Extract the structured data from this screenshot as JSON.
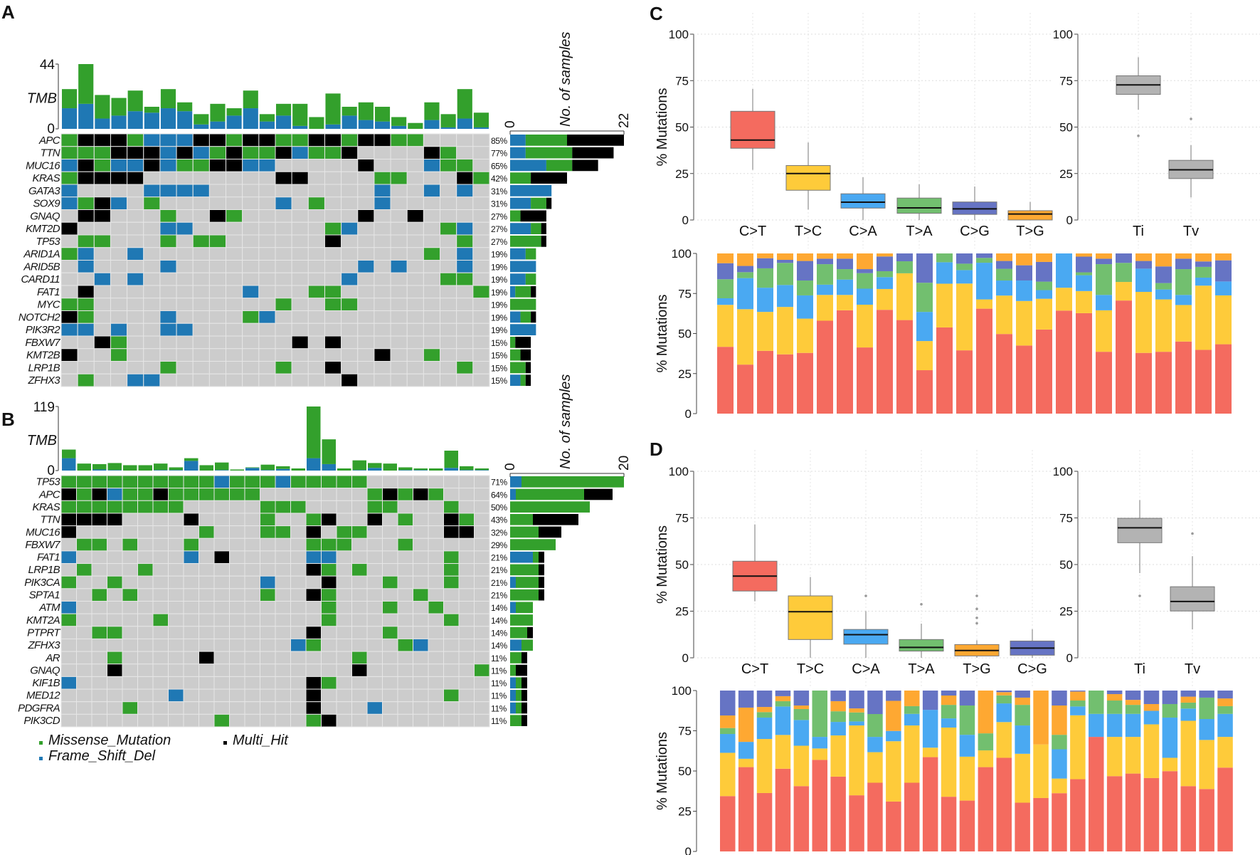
{
  "colors": {
    "Missense_Mutation": "#33a02c",
    "Frame_Shift_Del": "#1f78b4",
    "Multi_Hit": "#000000",
    "none": "#cccccc",
    "C>T": "#f46b5f",
    "T>C": "#fecb3a",
    "C>A": "#4aa9f2",
    "T>A": "#72bf6f",
    "C>G": "#6674c4",
    "T>G": "#fea832",
    "Ti": "#b3b3b3",
    "Tv": "#b3b3b3"
  },
  "cell_codes": {
    "G": "Missense_Mutation",
    "B": "Frame_Shift_Del",
    "K": "Multi_Hit",
    ".": "none"
  },
  "legend": {
    "items": [
      {
        "label": "Missense_Mutation",
        "code": "G"
      },
      {
        "label": "Frame_Shift_Del",
        "code": "B"
      },
      {
        "label": "Multi_Hit",
        "code": "K"
      }
    ]
  },
  "A": {
    "panel_label": "A",
    "tmb_axis": {
      "label": "TMB",
      "max": "44",
      "min": "0",
      "max_value": 44
    },
    "tmb_stack_order": [
      "Frame_Shift_Del",
      "Missense_Mutation"
    ],
    "tmb": [
      [
        14,
        13
      ],
      [
        17,
        27
      ],
      [
        7,
        16
      ],
      [
        9,
        12
      ],
      [
        12,
        14
      ],
      [
        11,
        4
      ],
      [
        14,
        13
      ],
      [
        12,
        6
      ],
      [
        3,
        7
      ],
      [
        5,
        12
      ],
      [
        9,
        5
      ],
      [
        14,
        12
      ],
      [
        5,
        5
      ],
      [
        9,
        8
      ],
      [
        2,
        15
      ],
      [
        0,
        8
      ],
      [
        3,
        21
      ],
      [
        9,
        6
      ],
      [
        6,
        12
      ],
      [
        5,
        10
      ],
      [
        2,
        6
      ],
      [
        0,
        4
      ],
      [
        6,
        12
      ],
      [
        1,
        9
      ],
      [
        7,
        20
      ],
      [
        1,
        10
      ]
    ],
    "count_axis": {
      "label": "No. of samples",
      "min": "0",
      "max": "22",
      "max_value": 22
    },
    "genes": [
      {
        "gene": "APC",
        "pct": "85%",
        "cells": "GKKKGBBBKKGKKGGKKGKKGG...."
      },
      {
        "gene": "TTN",
        "pct": "77%",
        "cells": "GGGKKKBKBGKGGKBGGK....KG.."
      },
      {
        "gene": "MUC16",
        "pct": "65%",
        "cells": "BKGBBKBGGKKBB.....K...BGG."
      },
      {
        "gene": "KRAS",
        "pct": "42%",
        "cells": "GKKKK........KK....GG...KG"
      },
      {
        "gene": "GATA3",
        "pct": "31%",
        "cells": "B....BBBB..........B..B.B."
      },
      {
        "gene": "SOX9",
        "pct": "31%",
        "cells": "BGKB.G.......B.G...B......"
      },
      {
        "gene": "GNAQ",
        "pct": "27%",
        "cells": ".KK...G..KG.......K..K...."
      },
      {
        "gene": "KMT2D",
        "pct": "27%",
        "cells": "K.....BB........GB.....GB."
      },
      {
        "gene": "TP53",
        "pct": "27%",
        "cells": ".GG...G.GG......K.......G."
      },
      {
        "gene": "ARID1A",
        "pct": "19%",
        "cells": "GB..B.................G.B."
      },
      {
        "gene": "ARID5B",
        "pct": "19%",
        "cells": ".B....B...........B.B...B."
      },
      {
        "gene": "CARD11",
        "pct": "19%",
        "cells": "..B.B............B.....GG."
      },
      {
        "gene": "FAT1",
        "pct": "19%",
        "cells": ".K.........B...GG........G"
      },
      {
        "gene": "MYC",
        "pct": "19%",
        "cells": "GG...........G..GG........"
      },
      {
        "gene": "NOTCH2",
        "pct": "19%",
        "cells": "KG....B....GB............."
      },
      {
        "gene": "PIK3R2",
        "pct": "19%",
        "cells": "BB.B..BB.................."
      },
      {
        "gene": "FBXW7",
        "pct": "15%",
        "cells": "..KG..........K.K........."
      },
      {
        "gene": "KMT2B",
        "pct": "15%",
        "cells": "K..G...............K..G..."
      },
      {
        "gene": "LRP1B",
        "pct": "15%",
        "cells": "......G......G..K.......G."
      },
      {
        "gene": "ZFHX3",
        "pct": "15%",
        "cells": ".G..BB...........K........"
      }
    ]
  },
  "B": {
    "panel_label": "B",
    "tmb_axis": {
      "label": "TMB",
      "max": "119",
      "min": "0",
      "max_value": 119
    },
    "tmb_stack_order": [
      "Frame_Shift_Del",
      "Missense_Mutation"
    ],
    "tmb": [
      [
        23,
        16
      ],
      [
        0,
        13
      ],
      [
        2,
        10
      ],
      [
        1,
        13
      ],
      [
        0,
        10
      ],
      [
        0,
        10
      ],
      [
        1,
        12
      ],
      [
        1,
        5
      ],
      [
        18,
        5
      ],
      [
        0,
        10
      ],
      [
        1,
        14
      ],
      [
        0,
        2
      ],
      [
        5,
        1
      ],
      [
        1,
        10
      ],
      [
        3,
        5
      ],
      [
        0,
        4
      ],
      [
        23,
        96
      ],
      [
        12,
        46
      ],
      [
        0,
        4
      ],
      [
        1,
        18
      ],
      [
        5,
        9
      ],
      [
        0,
        13
      ],
      [
        1,
        5
      ],
      [
        1,
        3
      ],
      [
        0,
        4
      ],
      [
        5,
        32
      ],
      [
        1,
        7
      ],
      [
        1,
        3
      ]
    ],
    "count_axis": {
      "label": "No. of samples",
      "min": "0",
      "max": "20",
      "max_value": 20
    },
    "genes": [
      {
        "gene": "TP53",
        "pct": "71%",
        "cells": "GGGGGGGGGGBGGGBGGGGG........"
      },
      {
        "gene": "APC",
        "pct": "64%",
        "cells": "KGKBGGKGGGGGG.......GKGKG..."
      },
      {
        "gene": "KRAS",
        "pct": "50%",
        "cells": "GGGGGGGG.....GGG....GG...G.."
      },
      {
        "gene": "TTN",
        "pct": "43%",
        "cells": "KKKK....K....G..GK..K.G..KG."
      },
      {
        "gene": "MUC16",
        "pct": "32%",
        "cells": "K........G...GG.K.GG.....KK."
      },
      {
        "gene": "FBXW7",
        "pct": "29%",
        "cells": ".GG.G...G.......GGG...G....."
      },
      {
        "gene": "FAT1",
        "pct": "21%",
        "cells": "B.......B.K.....BB.......G.."
      },
      {
        "gene": "LRP1B",
        "pct": "21%",
        "cells": ".G...G..........KG.G.....G.."
      },
      {
        "gene": "PIK3CA",
        "pct": "21%",
        "cells": "G..G.........B...K...G...G.."
      },
      {
        "gene": "SPTA1",
        "pct": "21%",
        "cells": "..G.G........G..KG.....G...."
      },
      {
        "gene": "ATM",
        "pct": "14%",
        "cells": "B................G...G..G..."
      },
      {
        "gene": "KMT2A",
        "pct": "14%",
        "cells": "G.....G..........G.......G.."
      },
      {
        "gene": "PTPRT",
        "pct": "14%",
        "cells": "..GG............K....G......"
      },
      {
        "gene": "ZFHX3",
        "pct": "14%",
        "cells": "...............BG.....GB...."
      },
      {
        "gene": "AR",
        "pct": "11%",
        "cells": "...G.....K.........G........"
      },
      {
        "gene": "GNAQ",
        "pct": "11%",
        "cells": "...K...............K.......G"
      },
      {
        "gene": "KIF1B",
        "pct": "11%",
        "cells": "B...............KG.........."
      },
      {
        "gene": "MED12",
        "pct": "11%",
        "cells": ".......B........K........G.."
      },
      {
        "gene": "PDGFRA",
        "pct": "11%",
        "cells": "....G...........K...B......."
      },
      {
        "gene": "PIK3CD",
        "pct": "11%",
        "cells": "..........G.....GK.........."
      }
    ]
  },
  "C": {
    "panel_label": "C",
    "chart_data": {
      "type": "box",
      "ylabel": "% Mutations",
      "ylim": [
        0,
        100
      ],
      "yticks": [
        "0",
        "25",
        "50",
        "75",
        "100"
      ],
      "substitutions": [
        {
          "label": "C>T",
          "low": 27,
          "q1": 38.6,
          "median": 43,
          "q3": 58.5,
          "high": 70.5,
          "outliers": []
        },
        {
          "label": "T>C",
          "low": 5.6,
          "q1": 16,
          "median": 25,
          "q3": 29.3,
          "high": 41.7,
          "outliers": []
        },
        {
          "label": "C>A",
          "low": 0,
          "q1": 6.4,
          "median": 9.6,
          "q3": 14.1,
          "high": 23,
          "outliers": []
        },
        {
          "label": "T>A",
          "low": 0,
          "q1": 3.6,
          "median": 6.5,
          "q3": 11.8,
          "high": 19.2,
          "outliers": []
        },
        {
          "label": "C>G",
          "low": 0,
          "q1": 3,
          "median": 6,
          "q3": 9.7,
          "high": 18,
          "outliers": []
        },
        {
          "label": "T>G",
          "low": 0,
          "q1": 0,
          "median": 3.2,
          "q3": 5,
          "high": 9.7,
          "outliers": []
        }
      ],
      "ti_tv": [
        {
          "label": "Ti",
          "low": 59.4,
          "q1": 67.6,
          "median": 72.7,
          "q3": 77.6,
          "high": 87.6,
          "outliers": [
            45.3
          ]
        },
        {
          "label": "Tv",
          "low": 12.1,
          "q1": 22.3,
          "median": 27,
          "q3": 32.1,
          "high": 40.3,
          "outliers": [
            54.4
          ]
        }
      ]
    },
    "stacked": {
      "type": "bar",
      "ylabel": "% Mutations",
      "ylim": [
        0,
        100
      ],
      "yticks": [
        "0",
        "25",
        "50",
        "75",
        "100"
      ],
      "stack_order": [
        "C>T",
        "T>C",
        "C>A",
        "T>A",
        "C>G",
        "T>G"
      ],
      "cumulative_percent": [
        [
          41.7,
          67.9,
          72,
          83.9,
          93.9
        ],
        [
          30.6,
          65.2,
          84.6,
          88.3,
          92.2
        ],
        [
          39.2,
          63.5,
          78.6,
          90.7,
          97
        ],
        [
          37,
          66.6,
          80.3,
          94.1,
          96
        ],
        [
          37.9,
          59.3,
          73.8,
          83.1,
          95.3
        ],
        [
          58,
          74.1,
          80.5,
          93.3,
          96.7
        ],
        [
          64.5,
          74.1,
          83.7,
          90.2,
          96.7
        ],
        [
          41.3,
          68,
          78,
          87.7,
          90.2
        ],
        [
          64.8,
          77.8,
          85.2,
          88.9,
          98.1
        ],
        [
          58.4,
          87.6,
          87.6,
          95.1,
          100
        ],
        [
          27.1,
          45.3,
          63.5,
          81.7,
          100
        ],
        [
          53.8,
          81.1,
          94.5,
          100,
          100
        ],
        [
          39.5,
          81.2,
          89.6,
          93.6,
          100
        ],
        [
          65.5,
          71.3,
          94.2,
          97.2,
          100
        ],
        [
          49.7,
          73.7,
          83.1,
          90.4,
          95.3
        ],
        [
          42.5,
          70.3,
          83.1,
          83.1,
          92.6
        ],
        [
          52.5,
          71.7,
          77.1,
          82.4,
          94.7
        ],
        [
          64.3,
          78.6,
          100,
          100,
          100
        ],
        [
          62.7,
          76.5,
          86.4,
          88.2,
          98
        ],
        [
          38.6,
          64.5,
          74.1,
          93.3,
          96.7
        ],
        [
          70.6,
          82.2,
          82.2,
          94.1,
          100
        ],
        [
          37.9,
          76,
          90.5,
          90.5,
          95.3
        ],
        [
          38.6,
          71.3,
          77.5,
          81.5,
          91.9
        ],
        [
          45,
          67.8,
          74.1,
          90.2,
          96.7
        ],
        [
          39.8,
          79.9,
          84.9,
          91.6,
          95
        ],
        [
          43.3,
          73.8,
          82.5,
          82.5,
          95.7
        ]
      ]
    }
  },
  "D": {
    "panel_label": "D",
    "chart_data": {
      "type": "box",
      "ylabel": "% Mutations",
      "ylim": [
        0,
        100
      ],
      "yticks": [
        "0",
        "25",
        "50",
        "75",
        "100"
      ],
      "substitutions": [
        {
          "label": "C>T",
          "low": 30.3,
          "q1": 35.8,
          "median": 43.8,
          "q3": 51.8,
          "high": 71.5,
          "outliers": []
        },
        {
          "label": "T>C",
          "low": 0,
          "q1": 9.8,
          "median": 24.7,
          "q3": 33.2,
          "high": 43.3,
          "outliers": []
        },
        {
          "label": "C>A",
          "low": 0,
          "q1": 7.3,
          "median": 12.4,
          "q3": 15.2,
          "high": 25,
          "outliers": [
            33.2
          ]
        },
        {
          "label": "T>A",
          "low": 0,
          "q1": 3.6,
          "median": 5.6,
          "q3": 9.8,
          "high": 18.3,
          "outliers": [
            28.7
          ]
        },
        {
          "label": "T>G",
          "low": 0,
          "q1": 1,
          "median": 3.9,
          "q3": 7.1,
          "high": 9.4,
          "outliers": [
            33.2,
            26.2,
            21.4,
            18.5
          ]
        },
        {
          "label": "C>G",
          "low": 0,
          "q1": 1.4,
          "median": 5.2,
          "q3": 9,
          "high": 15.3,
          "outliers": []
        }
      ],
      "ti_tv": [
        {
          "label": "Ti",
          "low": 45.4,
          "q1": 61.7,
          "median": 69.7,
          "q3": 74.8,
          "high": 84.6,
          "outliers": [
            33.2
          ]
        },
        {
          "label": "Tv",
          "low": 15.2,
          "q1": 25.1,
          "median": 30.2,
          "q3": 38.1,
          "high": 54.5,
          "outliers": [
            66.6
          ]
        }
      ]
    },
    "stacked": {
      "type": "bar",
      "ylabel": "% Mutations",
      "ylim": [
        0,
        100
      ],
      "yticks": [
        "0",
        "25",
        "50",
        "75",
        "100"
      ],
      "stack_order": [
        "C>T",
        "T>C",
        "C>A",
        "T>A",
        "T>G",
        "C>G"
      ],
      "cumulative_percent": [
        [
          34.4,
          61.3,
          73,
          76.7,
          84.5
        ],
        [
          52.4,
          57.6,
          68.1,
          68.1,
          89.4
        ],
        [
          36.3,
          69.9,
          83.2,
          86.6,
          89.8
        ],
        [
          51.4,
          72.4,
          90.1,
          93.4,
          96.5
        ],
        [
          40.6,
          65.7,
          81.7,
          88.5,
          90.7
        ],
        [
          56.9,
          64,
          71.2,
          100,
          100
        ],
        [
          46.5,
          72.1,
          80.5,
          87.1,
          93.4
        ],
        [
          34.9,
          78.3,
          80.8,
          86.4,
          88.9
        ],
        [
          42.7,
          61.7,
          71.2,
          85.4,
          85.4
        ],
        [
          31,
          68.5,
          74.9,
          74.9,
          93.6
        ],
        [
          42.7,
          78.3,
          85.5,
          90.3,
          100
        ],
        [
          58.6,
          64.5,
          88,
          88,
          88
        ],
        [
          34,
          77,
          82.7,
          91.1,
          96.9
        ],
        [
          31.6,
          58.9,
          72.5,
          90.7,
          90.7
        ],
        [
          52.4,
          62.8,
          62.8,
          73.4,
          100
        ],
        [
          58.2,
          80.4,
          92,
          97,
          99
        ],
        [
          30.3,
          60.7,
          78.3,
          91.1,
          95.6
        ],
        [
          33.2,
          66.5,
          66.5,
          66.5,
          100
        ],
        [
          36.2,
          45.3,
          63.5,
          72.5,
          90.7
        ],
        [
          44.9,
          84.6,
          90.1,
          93.8,
          99.4
        ],
        [
          71.2,
          71.2,
          85.5,
          100,
          100
        ],
        [
          46.8,
          71.2,
          85.5,
          93.8,
          97.8
        ],
        [
          48.4,
          71.2,
          85.5,
          91.1,
          94.2
        ],
        [
          45.6,
          79,
          87.4,
          87.4,
          91.6
        ],
        [
          49.9,
          58.2,
          83.2,
          91.6,
          91.6
        ],
        [
          40.6,
          81.2,
          88.8,
          92.5,
          96.2
        ],
        [
          38.8,
          69.3,
          82.3,
          95.6,
          95.6
        ],
        [
          52.1,
          71.2,
          85.5,
          90.3,
          95.1
        ]
      ]
    }
  }
}
